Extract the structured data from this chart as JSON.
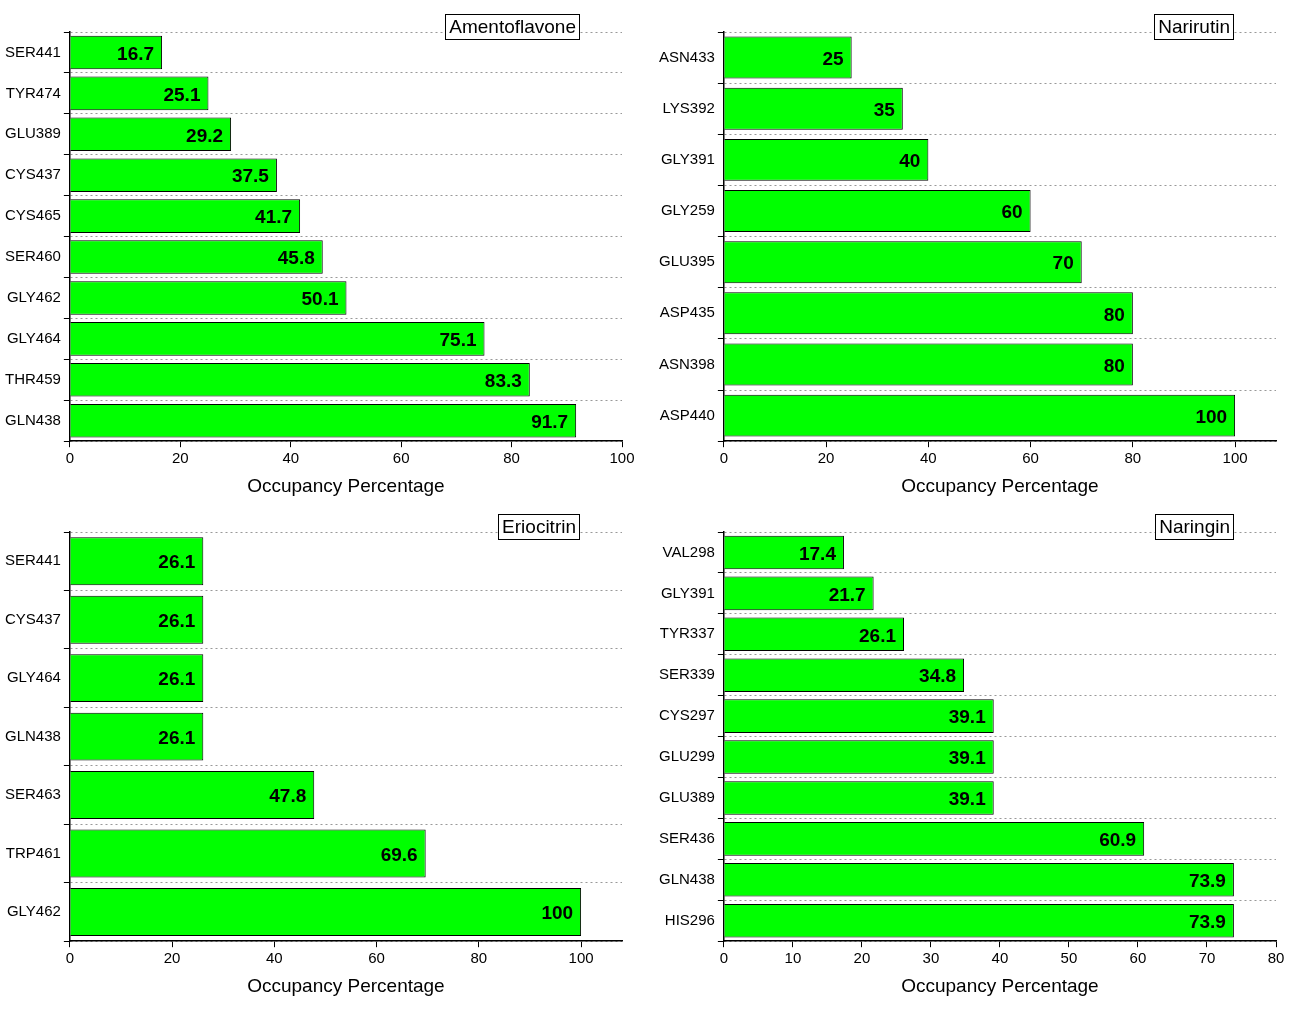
{
  "chart_data": [
    {
      "type": "bar",
      "orientation": "horizontal",
      "title": "Amentoflavone",
      "xlabel": "Occupancy Percentage",
      "categories": [
        "SER441",
        "TYR474",
        "GLU389",
        "CYS437",
        "CYS465",
        "SER460",
        "GLY462",
        "GLY464",
        "THR459",
        "GLN438"
      ],
      "values": [
        16.7,
        25.1,
        29.2,
        37.5,
        41.7,
        45.8,
        50.1,
        75.1,
        83.3,
        91.7
      ],
      "color": "#00ff00",
      "xlim": [
        0,
        100
      ],
      "xticks": [
        0,
        20,
        40,
        60,
        80,
        100
      ],
      "grid": "y",
      "data_labels": true
    },
    {
      "type": "bar",
      "orientation": "horizontal",
      "title": "Narirutin",
      "xlabel": "Occupancy Percentage",
      "categories": [
        "ASN433",
        "LYS392",
        "GLY391",
        "GLY259",
        "GLU395",
        "ASP435",
        "ASN398",
        "ASP440"
      ],
      "values": [
        25,
        35,
        40,
        60,
        70,
        80,
        80,
        100
      ],
      "color": "#00ff00",
      "xlim": [
        0,
        108
      ],
      "xticks": [
        0,
        20,
        40,
        60,
        80,
        100
      ],
      "grid": "y",
      "data_labels": true
    },
    {
      "type": "bar",
      "orientation": "horizontal",
      "title": "Eriocitrin",
      "xlabel": "Occupancy Percentage",
      "categories": [
        "SER441",
        "CYS437",
        "GLY464",
        "GLN438",
        "SER463",
        "TRP461",
        "GLY462"
      ],
      "values": [
        26.1,
        26.1,
        26.1,
        26.1,
        47.8,
        69.6,
        100
      ],
      "color": "#00ff00",
      "xlim": [
        0,
        108
      ],
      "xticks": [
        0,
        20,
        40,
        60,
        80,
        100
      ],
      "grid": "y",
      "data_labels": true
    },
    {
      "type": "bar",
      "orientation": "horizontal",
      "title": "Naringin",
      "xlabel": "Occupancy Percentage",
      "categories": [
        "VAL298",
        "GLY391",
        "TYR337",
        "SER339",
        "CYS297",
        "GLU299",
        "GLU389",
        "SER436",
        "GLN438",
        "HIS296"
      ],
      "values": [
        17.4,
        21.7,
        26.1,
        34.8,
        39.1,
        39.1,
        39.1,
        60.9,
        73.9,
        73.9
      ],
      "color": "#00ff00",
      "xlim": [
        0,
        80
      ],
      "xticks": [
        0,
        10,
        20,
        30,
        40,
        50,
        60,
        70,
        80
      ],
      "grid": "y",
      "data_labels": true
    }
  ]
}
